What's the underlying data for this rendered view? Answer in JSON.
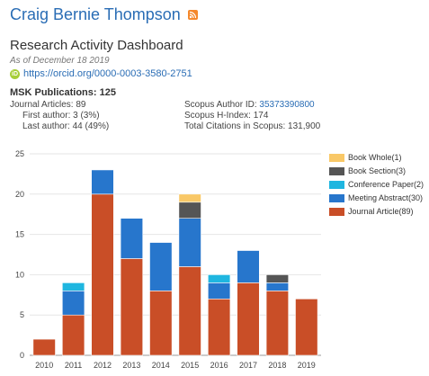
{
  "profile": {
    "name": "Craig Bernie Thompson",
    "rss_icon": "rss-icon"
  },
  "dashboard": {
    "title": "Research Activity Dashboard",
    "as_of": "As of December 18 2019",
    "orcid_url": "https://orcid.org/0000-0003-3580-2751",
    "orcid_icon_text": "iD"
  },
  "publications": {
    "title": "MSK Publications: 125",
    "journal_articles": "Journal Articles: 89",
    "first_author": "First author: 3 (3%)",
    "last_author": "Last author: 44 (49%)",
    "scopus_author_label": "Scopus Author ID: ",
    "scopus_author_id": "35373390800",
    "scopus_h_index": "Scopus H-Index: 174",
    "total_citations": "Total Citations in Scopus: 131,900"
  },
  "colors": {
    "book_whole": "#f9c867",
    "book_section": "#555555",
    "conference_paper": "#1fb6e0",
    "meeting_abstract": "#2776cc",
    "journal_article": "#c94e27",
    "link": "#2a6db5",
    "rss": "#f5882b",
    "orcid": "#a6ce39"
  },
  "chart_data": {
    "type": "bar",
    "stacked": true,
    "categories": [
      "2010",
      "2011",
      "2012",
      "2013",
      "2014",
      "2015",
      "2016",
      "2017",
      "2018",
      "2019"
    ],
    "ylim": [
      0,
      25
    ],
    "yticks": [
      0,
      5,
      10,
      15,
      20,
      25
    ],
    "grid": true,
    "legend_position": "right",
    "series": [
      {
        "name": "Journal Article(89)",
        "color": "#c94e27",
        "values": [
          2,
          5,
          20,
          12,
          8,
          11,
          7,
          9,
          8,
          7
        ]
      },
      {
        "name": "Meeting Abstract(30)",
        "color": "#2776cc",
        "values": [
          0,
          3,
          3,
          5,
          6,
          6,
          2,
          4,
          1,
          0
        ]
      },
      {
        "name": "Conference Paper(2)",
        "color": "#1fb6e0",
        "values": [
          0,
          1,
          0,
          0,
          0,
          0,
          1,
          0,
          0,
          0
        ]
      },
      {
        "name": "Book Section(3)",
        "color": "#555555",
        "values": [
          0,
          0,
          0,
          0,
          0,
          2,
          0,
          0,
          1,
          0
        ]
      },
      {
        "name": "Book Whole(1)",
        "color": "#f9c867",
        "values": [
          0,
          0,
          0,
          0,
          0,
          1,
          0,
          0,
          0,
          0
        ]
      }
    ],
    "legend_order": [
      "Book Whole(1)",
      "Book Section(3)",
      "Conference Paper(2)",
      "Meeting Abstract(30)",
      "Journal Article(89)"
    ]
  }
}
